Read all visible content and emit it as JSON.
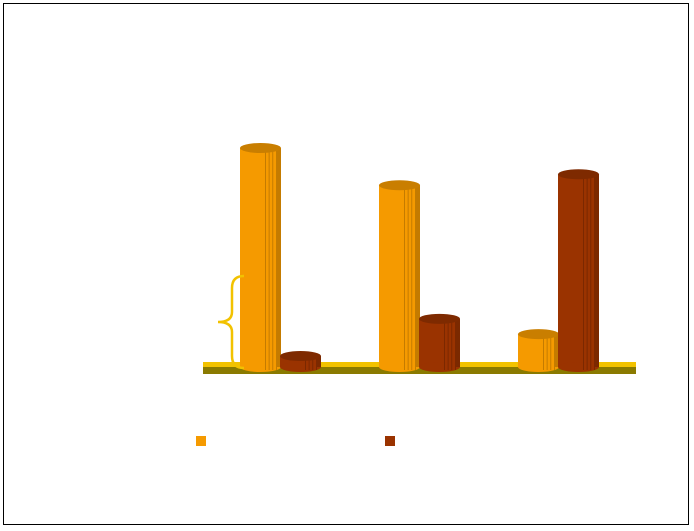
{
  "chart_data": {
    "type": "bar",
    "title": "",
    "xlabel": "",
    "ylabel": "",
    "categories": [
      "",
      "",
      ""
    ],
    "series": [
      {
        "color": "#F59A00",
        "values": [
          100,
          83,
          15
        ]
      },
      {
        "color": "#9A3300",
        "values": [
          5,
          22,
          88
        ]
      }
    ],
    "ylim": [
      0,
      100
    ],
    "grid": false,
    "legend": "bottom",
    "colors": {
      "floor_top": "#F2C200",
      "floor_front": "#8A7A00",
      "annotation": "#F2C200"
    }
  }
}
